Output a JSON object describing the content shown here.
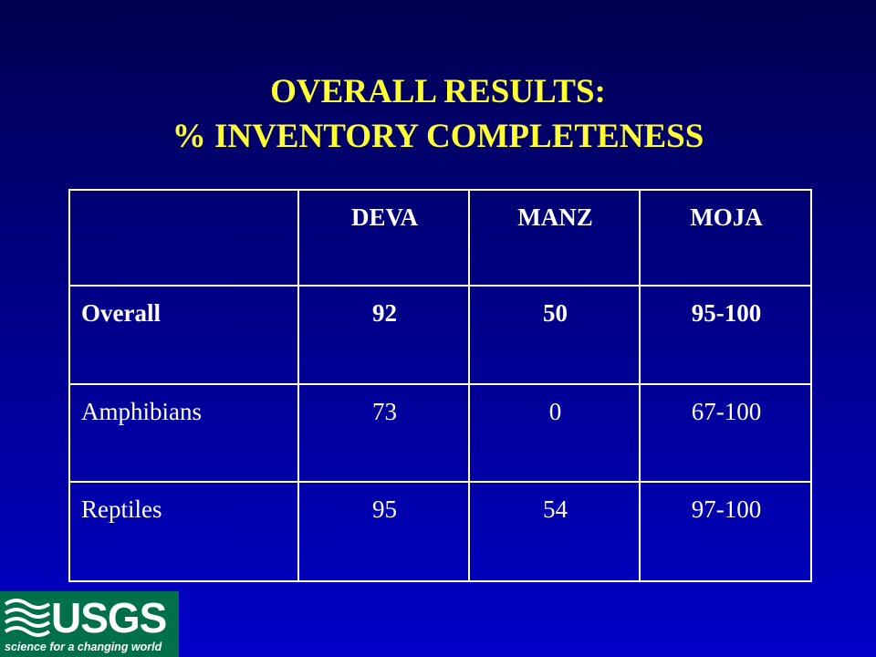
{
  "title": [
    "OVERALL RESULTS:",
    "% INVENTORY COMPLETENESS"
  ],
  "table": {
    "header": [
      "DEVA",
      "MANZ",
      "MOJA"
    ],
    "rows": [
      [
        "Overall",
        92,
        50,
        "95-100"
      ],
      [
        "Amphibians",
        73,
        0,
        "67-100"
      ],
      [
        "Reptiles",
        95,
        54,
        "97-100"
      ]
    ],
    "bold_rows": [
      0
    ]
  },
  "logo": {
    "name": "USGS",
    "tagline": "science for a changing world"
  }
}
